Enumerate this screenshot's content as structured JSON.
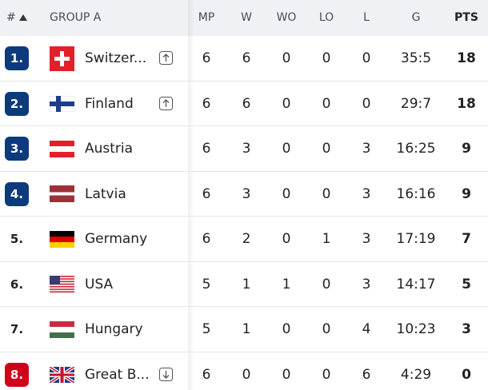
{
  "header": {
    "rank": "#",
    "group": "GROUP A",
    "columns": [
      "MP",
      "W",
      "WO",
      "LO",
      "L",
      "G",
      "PTS"
    ]
  },
  "rows": [
    {
      "rank": "1.",
      "badge": "#0c3a7d",
      "team": "Switzer...",
      "trend": "up",
      "cells": [
        6,
        6,
        0,
        0,
        0,
        "35:5",
        18
      ]
    },
    {
      "rank": "2.",
      "badge": "#0c3a7d",
      "team": "Finland",
      "trend": "up",
      "cells": [
        6,
        6,
        0,
        0,
        0,
        "29:7",
        18
      ]
    },
    {
      "rank": "3.",
      "badge": "#0c3a7d",
      "team": "Austria",
      "cells": [
        6,
        3,
        0,
        0,
        3,
        "16:25",
        9
      ]
    },
    {
      "rank": "4.",
      "badge": "#0c3a7d",
      "team": "Latvia",
      "cells": [
        6,
        3,
        0,
        0,
        3,
        "16:16",
        9
      ]
    },
    {
      "rank": "5.",
      "team": "Germany",
      "cells": [
        6,
        2,
        0,
        1,
        3,
        "17:19",
        7
      ]
    },
    {
      "rank": "6.",
      "team": "USA",
      "cells": [
        5,
        1,
        1,
        0,
        3,
        "14:17",
        5
      ]
    },
    {
      "rank": "7.",
      "team": "Hungary",
      "cells": [
        5,
        1,
        0,
        0,
        4,
        "10:23",
        3
      ]
    },
    {
      "rank": "8.",
      "badge": "#d0021b",
      "team": "Great B...",
      "trend": "down",
      "cells": [
        6,
        0,
        0,
        0,
        6,
        "4:29",
        0
      ]
    }
  ]
}
